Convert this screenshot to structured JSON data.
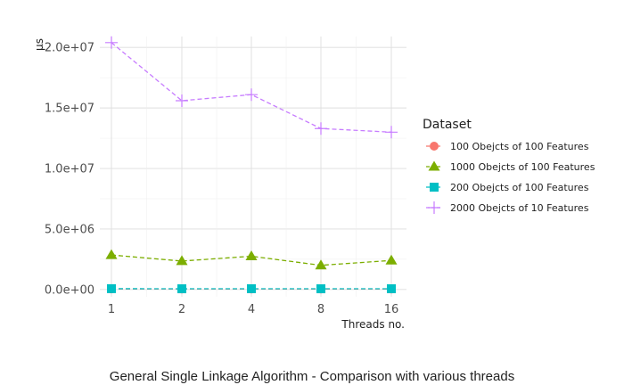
{
  "chart_data": {
    "type": "line",
    "x": [
      "1",
      "2",
      "4",
      "8",
      "16"
    ],
    "xlabel": "Threads no.",
    "ylabel": "µs",
    "ylim": [
      -600000.0,
      20900000.0
    ],
    "yticks": [
      0,
      5000000,
      10000000,
      15000000,
      20000000
    ],
    "ytick_labels": [
      "0.0e+00",
      "5.0e+06",
      "1.0e+07",
      "1.5e+07",
      "2.0e+07"
    ],
    "grid": true,
    "legend_position": "right",
    "legend_title": "Dataset",
    "series": [
      {
        "name": "100 Obejcts of 100 Features",
        "marker": "circle",
        "color": "#F8766D",
        "values": [
          50000,
          45000,
          48000,
          44000,
          46000
        ]
      },
      {
        "name": "1000 Obejcts of 100 Features",
        "marker": "triangle",
        "color": "#7CAE00",
        "values": [
          2850000,
          2350000,
          2750000,
          2000000,
          2400000
        ]
      },
      {
        "name": "200 Obejcts of 100 Features",
        "marker": "square",
        "color": "#00BFC4",
        "values": [
          70000,
          60000,
          65000,
          60000,
          62000
        ]
      },
      {
        "name": "2000 Obejcts of 10 Features",
        "marker": "plus",
        "color": "#C77CFF",
        "values": [
          20400000,
          15600000,
          16100000,
          13300000,
          13000000
        ]
      }
    ],
    "caption": "General Single Linkage Algorithm - Comparison with various threads"
  }
}
